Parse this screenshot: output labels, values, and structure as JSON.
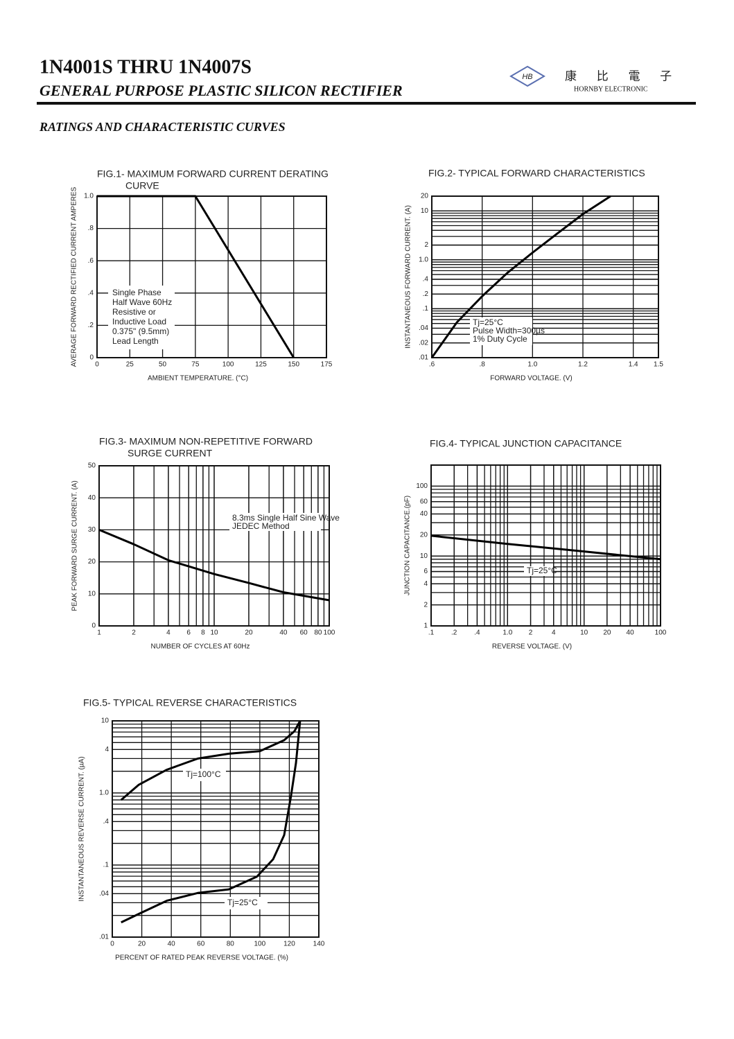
{
  "header": {
    "title": "1N4001S THRU 1N4007S",
    "subtitle": "GENERAL PURPOSE PLASTIC SILICON RECTIFIER",
    "logo_mark": "HB",
    "logo_chinese": "康 比 電 子",
    "logo_company": "HORNBY ELECTRONIC",
    "section": "RATINGS AND CHARACTERISTIC CURVES"
  },
  "chart_data": [
    {
      "type": "line",
      "title": [
        "FIG.1- MAXIMUM FORWARD CURRENT DERATING",
        "CURVE"
      ],
      "x": [
        0,
        75,
        150
      ],
      "values": [
        1,
        1,
        0
      ],
      "color": "#000000",
      "xlim": [
        0,
        175
      ],
      "xticks": [
        0,
        25,
        50,
        75,
        100,
        125,
        150,
        175
      ],
      "ylim": [
        0,
        1
      ],
      "yticks": [
        0,
        {
          "value": 0.2,
          "label": ".2"
        },
        {
          "value": 0.4,
          "label": ".4"
        },
        {
          "value": 0.6,
          "label": ".6"
        },
        {
          "value": 0.8,
          "label": ".8"
        },
        {
          "value": 1,
          "label": "1.0"
        }
      ],
      "xlabel": "AMBIENT TEMPERATURE. (°C)",
      "ylabel": "AVERAGE FORWARD RECTIFIED CURRENT AMPERES",
      "annotation": [
        "Single Phase",
        "Half Wave 60Hz",
        "Resistive or",
        "Inductive Load",
        "0.375\" (9.5mm)",
        "Lead Length"
      ],
      "grid": true
    },
    {
      "type": "line",
      "title": [
        "FIG.2- TYPICAL FORWARD CHARACTERISTICS"
      ],
      "x": [
        0.6,
        0.7,
        0.8,
        0.9,
        1.0,
        1.1,
        1.2,
        1.31
      ],
      "values": [
        0.01,
        0.053,
        0.18,
        0.54,
        1.4,
        3.5,
        8.6,
        20
      ],
      "color": "#000000",
      "xlim": [
        0.6,
        1.5
      ],
      "xticks": [
        {
          "value": 0.6,
          "label": ".6"
        },
        {
          "value": 0.8,
          "label": ".8"
        },
        {
          "value": 1,
          "label": "1.0"
        },
        1.2,
        1.4,
        1.5
      ],
      "ylim": [
        0.01,
        20
      ],
      "yscale": "log",
      "yticks": [
        {
          "value": 0.01,
          "label": ".01"
        },
        {
          "value": 0.02,
          "label": ".02"
        },
        {
          "value": 0.04,
          "label": ".04"
        },
        {
          "value": 0.1,
          "label": ".1"
        },
        {
          "value": 0.2,
          "label": ".2"
        },
        {
          "value": 0.4,
          "label": ".4"
        },
        {
          "value": 1,
          "label": "1.0"
        },
        2,
        10,
        20
      ],
      "xlabel": "FORWARD VOLTAGE. (V)",
      "ylabel": "INSTANTANEOUS FORWARD CURRENT. (A)",
      "annotation": [
        "Tj=25°C",
        "Pulse Width=300µs",
        "1% Duty Cycle"
      ],
      "grid": true
    },
    {
      "type": "line",
      "title": [
        "FIG.3- MAXIMUM NON-REPETITIVE FORWARD",
        "SURGE CURRENT"
      ],
      "x": [
        1,
        2,
        4,
        10,
        20,
        40,
        100
      ],
      "values": [
        30,
        25.5,
        20.5,
        16.2,
        13.4,
        10.5,
        8
      ],
      "color": "#000000",
      "xlim": [
        1,
        100
      ],
      "xscale": "log",
      "xticks": [
        1,
        2,
        4,
        6,
        8,
        10,
        20,
        40,
        60,
        80,
        100
      ],
      "ylim": [
        0,
        50
      ],
      "yticks": [
        0,
        10,
        20,
        30,
        40,
        50
      ],
      "xlabel": "NUMBER OF CYCLES AT 60Hz",
      "ylabel": "PEAK FORWARD SURGE CURRENT. (A)",
      "annotation": [
        "8.3ms Single Half Sine Wave",
        "JEDEC Method"
      ],
      "grid": true
    },
    {
      "type": "line",
      "title": [
        "FIG.4- TYPICAL JUNCTION CAPACITANCE"
      ],
      "x": [
        0.1,
        1,
        10,
        100
      ],
      "values": [
        19.5,
        14.9,
        11.6,
        9
      ],
      "color": "#000000",
      "xlim": [
        0.1,
        100
      ],
      "xscale": "log",
      "xticks": [
        {
          "value": 0.1,
          "label": ".1"
        },
        {
          "value": 0.2,
          "label": ".2"
        },
        {
          "value": 0.4,
          "label": ".4"
        },
        {
          "value": 1,
          "label": "1.0"
        },
        2,
        4,
        10,
        20,
        40,
        100
      ],
      "ylim": [
        1,
        200
      ],
      "yscale": "log",
      "yticks": [
        1,
        2,
        4,
        6,
        10,
        20,
        40,
        60,
        100
      ],
      "xlabel": "REVERSE VOLTAGE. (V)",
      "ylabel": "JUNCTION CAPACITANCE.(pF)",
      "annotation": [
        "Tj=25°C"
      ],
      "grid": true
    },
    {
      "type": "line",
      "title": [
        "FIG.5- TYPICAL REVERSE CHARACTERISTICS"
      ],
      "series": [
        {
          "name": "Tj=100°C",
          "color": "#000000",
          "x": [
            6,
            18,
            37,
            58,
            79,
            100,
            116.5,
            123.5,
            127.3
          ],
          "values": [
            0.8,
            1.3,
            2.1,
            3,
            3.5,
            3.8,
            5.4,
            7.2,
            10
          ]
        },
        {
          "name": "Tj=25°C",
          "color": "#000000",
          "x": [
            6,
            18,
            37,
            58,
            79,
            98,
            109,
            116.5,
            121,
            124.5,
            127.3
          ],
          "values": [
            0.016,
            0.021,
            0.032,
            0.041,
            0.046,
            0.069,
            0.12,
            0.26,
            0.87,
            2.6,
            10
          ]
        }
      ],
      "xlim": [
        0,
        140
      ],
      "xticks": [
        0,
        20,
        40,
        60,
        80,
        100,
        120,
        140
      ],
      "ylim": [
        0.01,
        10
      ],
      "yscale": "log",
      "yticks": [
        {
          "value": 0.01,
          "label": ".01"
        },
        {
          "value": 0.04,
          "label": ".04"
        },
        {
          "value": 0.1,
          "label": ".1"
        },
        {
          "value": 0.4,
          "label": ".4"
        },
        {
          "value": 1,
          "label": "1.0"
        },
        4,
        10
      ],
      "xlabel": "PERCENT OF RATED PEAK REVERSE VOLTAGE. (%)",
      "ylabel": "INSTANTANEOUS REVERSE CURRENT. (µA)",
      "grid": true
    }
  ]
}
